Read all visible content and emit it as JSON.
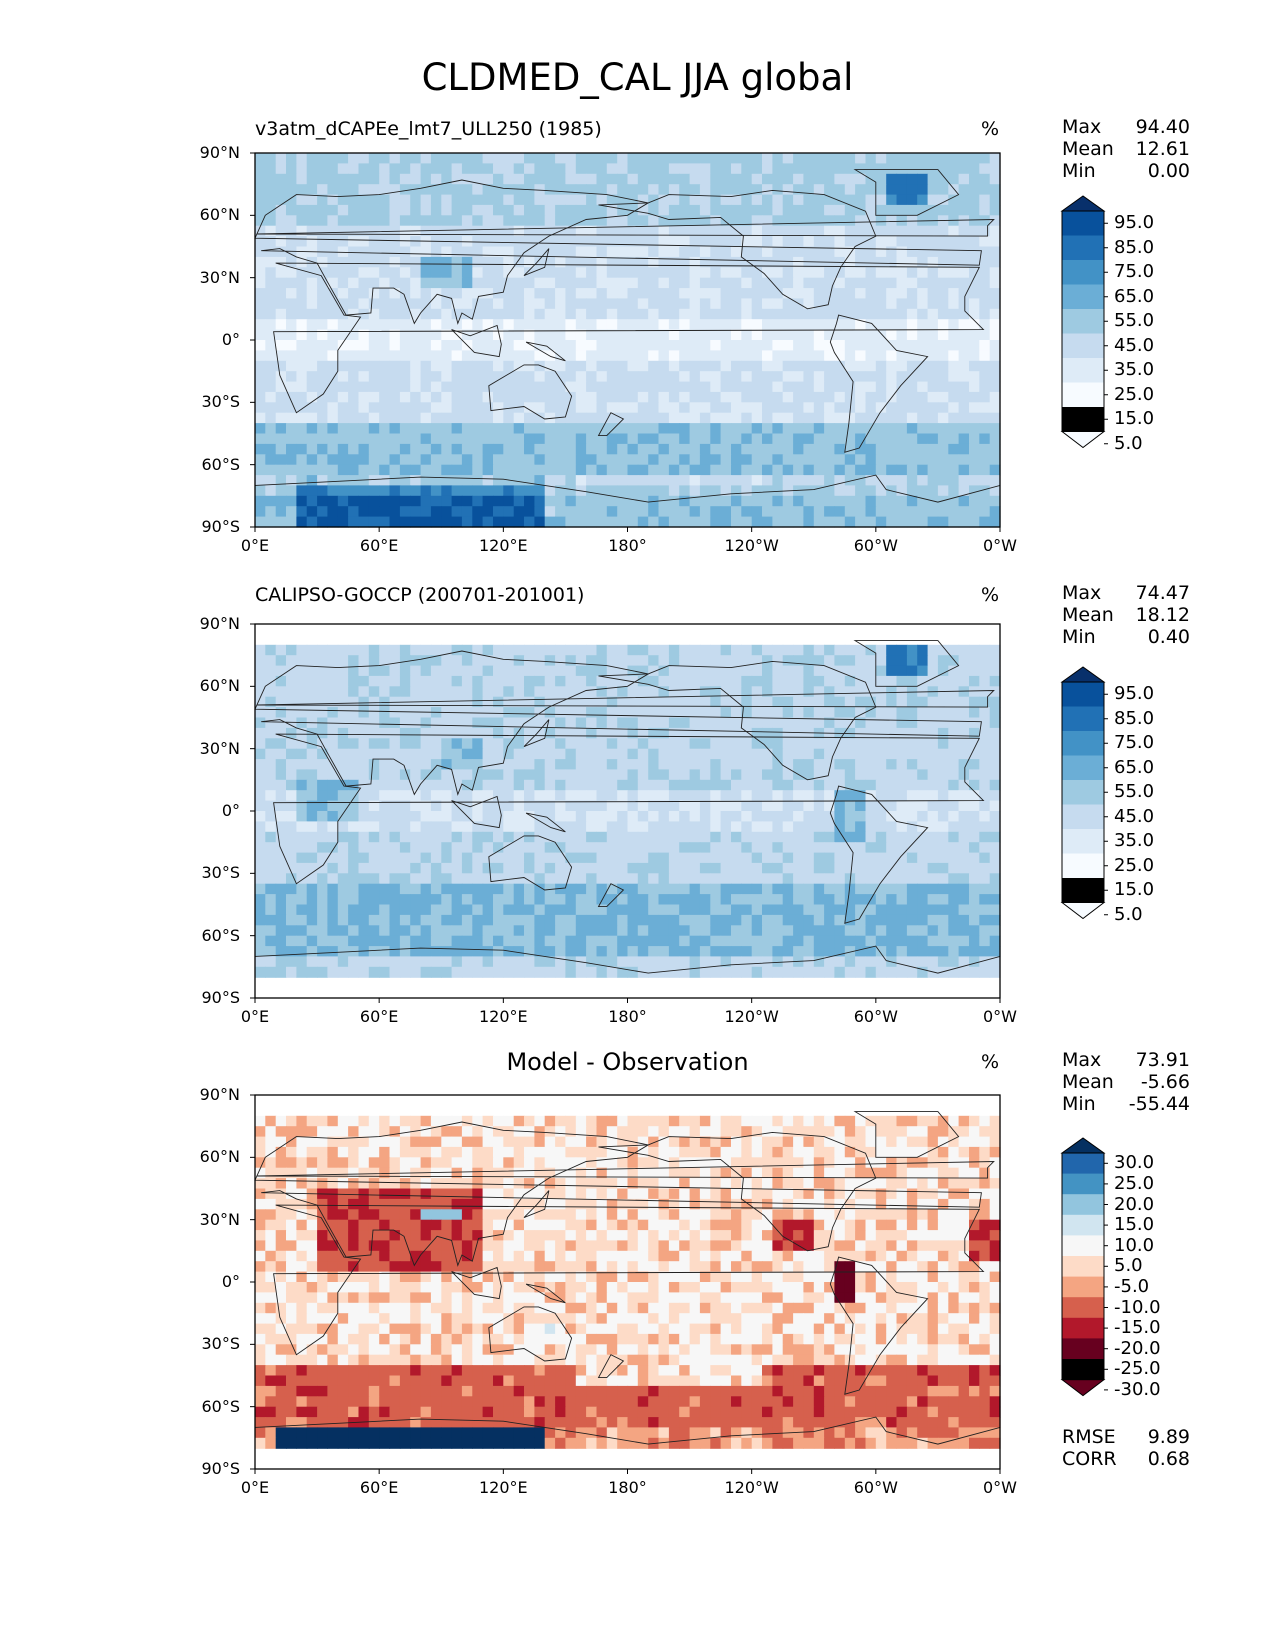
{
  "figure_title": "CLDMED_CAL JJA global",
  "colors": {
    "blues": [
      "#f7fbff",
      "#deebf7",
      "#c6dbef",
      "#9ecae1",
      "#6baed6",
      "#4292c6",
      "#2171b5",
      "#08519c",
      "#08306b"
    ],
    "diverging": [
      "#67001f",
      "#b2182b",
      "#d6604d",
      "#f4a582",
      "#fddbc7",
      "#f7f7f7",
      "#d1e5f0",
      "#92c5de",
      "#4393c3",
      "#2166ac",
      "#053061"
    ],
    "coastline": "#222222"
  },
  "chart_data": [
    {
      "type": "heatmap",
      "title": "v3atm_dCAPEe_lmt7_ULL250 (1985)",
      "units": "%",
      "stats": {
        "max_label": "Max",
        "max": "94.40",
        "mean_label": "Mean",
        "mean": "12.61",
        "min_label": "Min",
        "min": "0.00"
      },
      "colorbar": {
        "levels": [
          "95.0",
          "85.0",
          "75.0",
          "65.0",
          "55.0",
          "45.0",
          "35.0",
          "25.0",
          "15.0",
          "5.0"
        ],
        "extend": "both"
      },
      "xticks": [
        "0°E",
        "60°E",
        "120°E",
        "180°",
        "120°W",
        "60°W",
        "0°W"
      ],
      "yticks": [
        "90°N",
        "60°N",
        "30°N",
        "0°",
        "30°S",
        "60°S",
        "90°S"
      ],
      "xlim": [
        0,
        360
      ],
      "ylim": [
        -90,
        90
      ]
    },
    {
      "type": "heatmap",
      "title": "CALIPSO-GOCCP (200701-201001)",
      "units": "%",
      "stats": {
        "max_label": "Max",
        "max": "74.47",
        "mean_label": "Mean",
        "mean": "18.12",
        "min_label": "Min",
        "min": "0.40"
      },
      "colorbar": {
        "levels": [
          "95.0",
          "85.0",
          "75.0",
          "65.0",
          "55.0",
          "45.0",
          "35.0",
          "25.0",
          "15.0",
          "5.0"
        ],
        "extend": "both"
      },
      "xticks": [
        "0°E",
        "60°E",
        "120°E",
        "180°",
        "120°W",
        "60°W",
        "0°W"
      ],
      "yticks": [
        "90°N",
        "60°N",
        "30°N",
        "0°",
        "30°S",
        "60°S",
        "90°S"
      ],
      "xlim": [
        0,
        360
      ],
      "ylim": [
        -90,
        90
      ]
    },
    {
      "type": "heatmap",
      "title": "Model - Observation",
      "units": "%",
      "stats": {
        "max_label": "Max",
        "max": "73.91",
        "mean_label": "Mean",
        "mean": "-5.66",
        "min_label": "Min",
        "min": "-55.44"
      },
      "colorbar": {
        "levels": [
          "30.0",
          "25.0",
          "20.0",
          "15.0",
          "10.0",
          "5.0",
          "-5.0",
          "-10.0",
          "-15.0",
          "-20.0",
          "-25.0",
          "-30.0"
        ],
        "extend": "both"
      },
      "metrics": {
        "rmse_label": "RMSE",
        "rmse": "9.89",
        "corr_label": "CORR",
        "corr": "0.68"
      },
      "xticks": [
        "0°E",
        "60°E",
        "120°E",
        "180°",
        "120°W",
        "60°W",
        "0°W"
      ],
      "yticks": [
        "90°N",
        "60°N",
        "30°N",
        "0°",
        "30°S",
        "60°S",
        "90°S"
      ],
      "xlim": [
        0,
        360
      ],
      "ylim": [
        -90,
        90
      ]
    }
  ]
}
